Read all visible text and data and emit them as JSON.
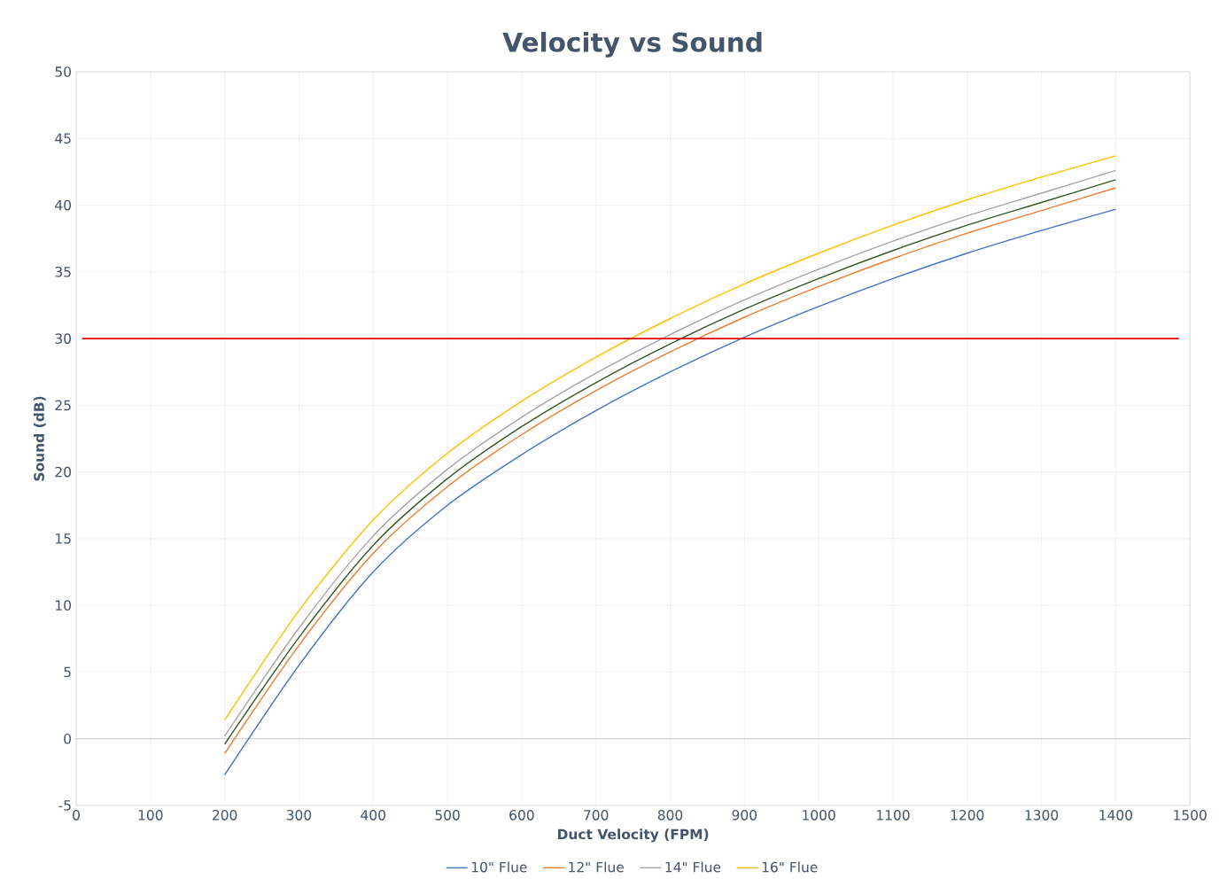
{
  "chart_data": {
    "type": "line",
    "title": "Velocity vs Sound",
    "xlabel": "Duct Velocity (FPM)",
    "ylabel": "Sound (dB)",
    "x": [
      200,
      300,
      400,
      500,
      600,
      700,
      800,
      900,
      1000,
      1100,
      1200,
      1300,
      1400
    ],
    "series": [
      {
        "name": "10\" Flue",
        "color": "#4472c4",
        "values": [
          -2.7,
          5.5,
          12.5,
          17.5,
          21.3,
          24.6,
          27.5,
          30.1,
          32.4,
          34.5,
          36.4,
          38.1,
          39.7
        ]
      },
      {
        "name": "12\" Flue",
        "color": "#ed7d31",
        "values": [
          -1.1,
          7.0,
          13.9,
          18.9,
          22.8,
          26.1,
          29.0,
          31.6,
          33.9,
          36.0,
          37.9,
          39.6,
          41.3
        ]
      },
      {
        "name": "14\" Flue",
        "color": "#a5a5a5",
        "values": [
          0.2,
          8.3,
          15.2,
          20.2,
          24.1,
          27.4,
          30.3,
          32.9,
          35.2,
          37.3,
          39.2,
          40.9,
          42.6
        ]
      },
      {
        "name": "16\" Flue",
        "color": "#ffc000",
        "values": [
          1.4,
          9.6,
          16.4,
          21.4,
          25.3,
          28.6,
          31.5,
          34.1,
          36.4,
          38.5,
          40.4,
          42.1,
          43.7
        ]
      },
      {
        "color": "#375623",
        "values": [
          -0.4,
          7.6,
          14.5,
          19.5,
          23.4,
          26.7,
          29.6,
          32.2,
          34.5,
          36.6,
          38.5,
          40.2,
          41.9
        ]
      }
    ],
    "xlim": [
      0,
      1500
    ],
    "xticks": [
      0,
      100,
      200,
      300,
      400,
      500,
      600,
      700,
      800,
      900,
      1000,
      1100,
      1200,
      1300,
      1400,
      1500
    ],
    "ylim": [
      -5,
      50
    ],
    "yticks": [
      -5,
      0,
      5,
      10,
      15,
      20,
      25,
      30,
      35,
      40,
      45,
      50
    ],
    "ref_lines": [
      {
        "axis": "y",
        "value": 30,
        "color": "#e00000"
      }
    ],
    "grid": true,
    "legend": "bottom",
    "marker": "none",
    "line_style": "solid"
  }
}
